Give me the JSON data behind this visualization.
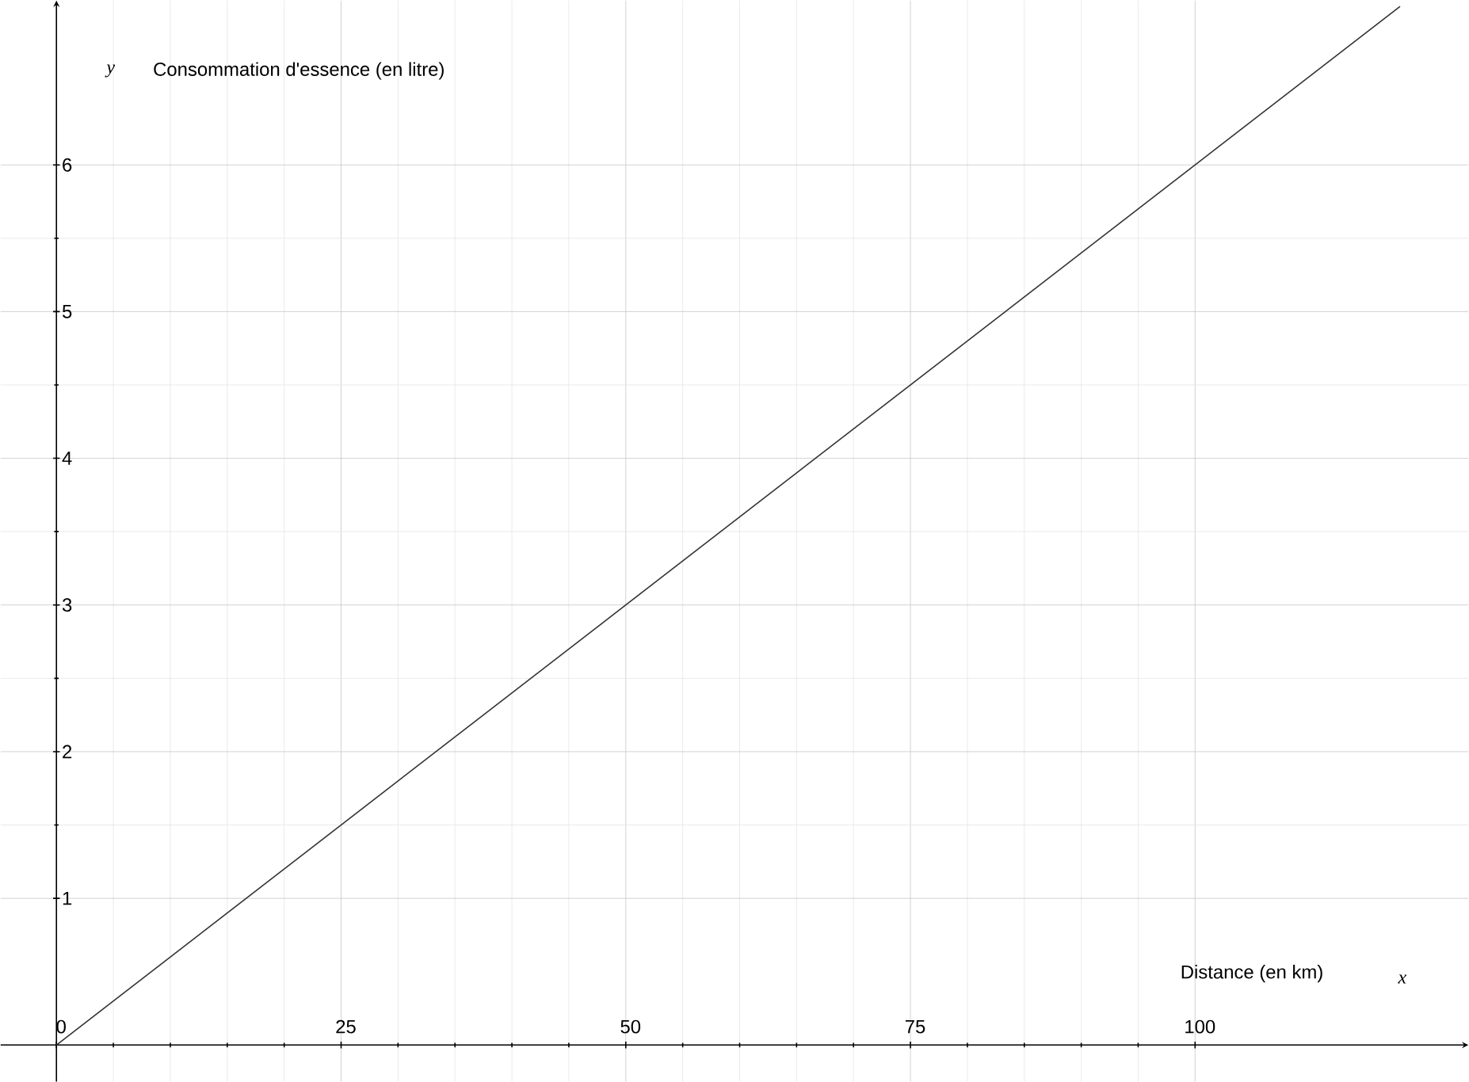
{
  "chart_data": {
    "type": "line",
    "xlabel": "x",
    "ylabel": "y",
    "annotations": [
      "Consommation d'essence (en litre)",
      "Distance (en km)"
    ],
    "x": [
      0,
      118
    ],
    "series": [
      {
        "color": "#333333",
        "values": [
          0,
          7.08
        ]
      }
    ],
    "xlim": [
      -4.9,
      124
    ],
    "ylim": [
      -0.25,
      7.12
    ],
    "xticks": [
      0,
      25,
      50,
      75,
      100
    ],
    "yticks": [
      1,
      2,
      3,
      4,
      5,
      6
    ],
    "grid": true,
    "marker": "none",
    "line_style": "solid"
  }
}
